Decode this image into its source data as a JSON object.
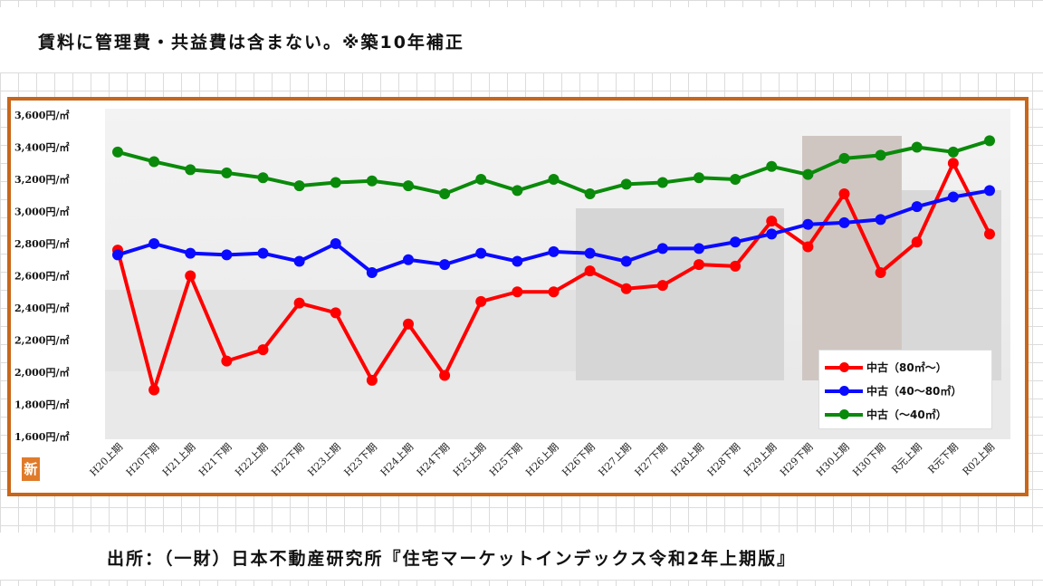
{
  "header": {
    "note": "賃料に管理費・共益費は含まない。※築10年補正"
  },
  "footer": {
    "source": "出所：（一財）日本不動産研究所『住宅マーケットインデックス令和2年上期版』"
  },
  "logo_text": "新",
  "chart_data": {
    "type": "line",
    "title": "",
    "xlabel": "",
    "ylabel": "",
    "ylim": [
      1600,
      3600
    ],
    "yticks": [
      1600,
      1800,
      2000,
      2200,
      2400,
      2600,
      2800,
      3000,
      3200,
      3400,
      3600
    ],
    "ytick_labels": [
      "1,600円/㎡",
      "1,800円/㎡",
      "2,000円/㎡",
      "2,200円/㎡",
      "2,400円/㎡",
      "2,600円/㎡",
      "2,800円/㎡",
      "3,000円/㎡",
      "3,200円/㎡",
      "3,400円/㎡",
      "3,600円/㎡"
    ],
    "categories": [
      "H20上期",
      "H20下期",
      "H21上期",
      "H21下期",
      "H22上期",
      "H22下期",
      "H23上期",
      "H23下期",
      "H24上期",
      "H24下期",
      "H25上期",
      "H25下期",
      "H26上期",
      "H26下期",
      "H27上期",
      "H27下期",
      "H28上期",
      "H28下期",
      "H29上期",
      "H29下期",
      "H30上期",
      "H30下期",
      "R元上期",
      "R元下期",
      "R02上期"
    ],
    "grid": false,
    "legend_position": "bottom-right",
    "series": [
      {
        "name": "中古（80㎡～）",
        "color": "#ff0000",
        "values": [
          2760,
          1890,
          2600,
          2070,
          2140,
          2430,
          2370,
          1950,
          2300,
          1980,
          2440,
          2500,
          2500,
          2630,
          2520,
          2540,
          2670,
          2660,
          2940,
          2780,
          3110,
          2620,
          2810,
          3300,
          2860
        ]
      },
      {
        "name": "中古（40～80㎡）",
        "color": "#0a0aff",
        "values": [
          2730,
          2800,
          2740,
          2730,
          2740,
          2690,
          2800,
          2620,
          2700,
          2670,
          2740,
          2690,
          2750,
          2740,
          2690,
          2770,
          2770,
          2810,
          2860,
          2920,
          2930,
          2950,
          3030,
          3090,
          3130
        ]
      },
      {
        "name": "中古（～40㎡）",
        "color": "#0a8a0a",
        "values": [
          3370,
          3310,
          3260,
          3240,
          3210,
          3160,
          3180,
          3190,
          3160,
          3110,
          3200,
          3130,
          3200,
          3110,
          3170,
          3180,
          3210,
          3200,
          3280,
          3230,
          3330,
          3350,
          3400,
          3370,
          3440
        ]
      }
    ]
  }
}
